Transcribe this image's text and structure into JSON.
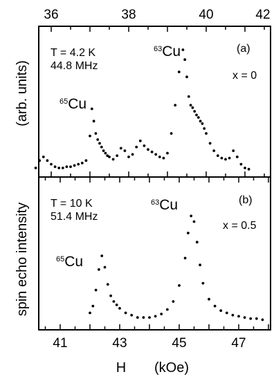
{
  "chart_data": [
    {
      "type": "scatter",
      "panel": "a",
      "panel_label": "(a)",
      "condition_line1": "T = 4.2 K",
      "condition_line2": "44.8 MHz",
      "x_param": "x = 0",
      "top_ticks": [
        "36",
        "38",
        "40",
        "42"
      ],
      "top_xlim": [
        35.0,
        42.0
      ],
      "annotations": [
        {
          "mass": "65",
          "element": "Cu"
        },
        {
          "mass": "63",
          "element": "Cu"
        }
      ],
      "ylim": [
        0,
        1.0
      ],
      "x": [
        35.6,
        35.7,
        35.8,
        35.9,
        36.0,
        36.1,
        36.2,
        36.3,
        36.4,
        36.5,
        36.6,
        36.7,
        36.8,
        36.9,
        37.0,
        37.05,
        37.1,
        37.15,
        37.2,
        37.25,
        37.3,
        37.35,
        37.4,
        37.45,
        37.5,
        37.6,
        37.7,
        37.8,
        37.9,
        38.0,
        38.1,
        38.2,
        38.3,
        38.4,
        38.5,
        38.6,
        38.7,
        38.8,
        38.9,
        39.0,
        39.1,
        39.2,
        39.3,
        39.4,
        39.45,
        39.5,
        39.55,
        39.6,
        39.65,
        39.7,
        39.75,
        39.8,
        39.85,
        39.9,
        39.95,
        40.0,
        40.1,
        40.2,
        40.3,
        40.4,
        40.5,
        40.6,
        40.7,
        40.8,
        40.9,
        41.0,
        41.1
      ],
      "y": [
        0.04,
        0.1,
        0.13,
        0.1,
        0.07,
        0.05,
        0.04,
        0.04,
        0.05,
        0.05,
        0.06,
        0.07,
        0.08,
        0.1,
        0.3,
        0.52,
        0.42,
        0.32,
        0.27,
        0.24,
        0.21,
        0.18,
        0.16,
        0.14,
        0.13,
        0.11,
        0.14,
        0.2,
        0.18,
        0.13,
        0.15,
        0.21,
        0.26,
        0.22,
        0.19,
        0.17,
        0.15,
        0.13,
        0.12,
        0.16,
        0.32,
        0.55,
        0.82,
        1.0,
        0.92,
        0.78,
        0.62,
        0.55,
        0.53,
        0.5,
        0.47,
        0.45,
        0.42,
        0.4,
        0.36,
        0.32,
        0.24,
        0.18,
        0.14,
        0.12,
        0.11,
        0.12,
        0.18,
        0.13,
        0.07,
        0.04,
        0.03
      ]
    },
    {
      "type": "scatter",
      "panel": "b",
      "panel_label": "(b)",
      "condition_line1": "T = 10 K",
      "condition_line2": "51.4 MHz",
      "x_param": "x = 0.5",
      "bottom_ticks": [
        "41",
        "43",
        "45",
        "47"
      ],
      "xlim": [
        40.2,
        48.0
      ],
      "xlabel_left": "H",
      "xlabel_right": "(kOe)",
      "ylabel": "spin echo intensity",
      "ylabel_units": "(arb. units)",
      "annotations": [
        {
          "mass": "65",
          "element": "Cu"
        },
        {
          "mass": "63",
          "element": "Cu"
        }
      ],
      "ylim": [
        0,
        1.0
      ],
      "x": [
        42.0,
        42.1,
        42.2,
        42.3,
        42.4,
        42.5,
        42.6,
        42.7,
        42.8,
        42.9,
        43.0,
        43.2,
        43.4,
        43.6,
        43.8,
        44.0,
        44.2,
        44.4,
        44.6,
        44.8,
        45.0,
        45.2,
        45.3,
        45.4,
        45.5,
        45.6,
        45.7,
        45.8,
        46.0,
        46.2,
        46.4,
        46.6,
        46.8,
        47.0,
        47.2,
        47.4,
        47.6,
        47.8
      ],
      "y": [
        0.1,
        0.16,
        0.3,
        0.48,
        0.6,
        0.5,
        0.35,
        0.25,
        0.2,
        0.17,
        0.14,
        0.1,
        0.08,
        0.06,
        0.06,
        0.06,
        0.07,
        0.09,
        0.13,
        0.2,
        0.34,
        0.58,
        0.8,
        0.95,
        0.9,
        0.72,
        0.52,
        0.36,
        0.22,
        0.16,
        0.12,
        0.1,
        0.08,
        0.07,
        0.06,
        0.05,
        0.05,
        0.04
      ]
    }
  ]
}
